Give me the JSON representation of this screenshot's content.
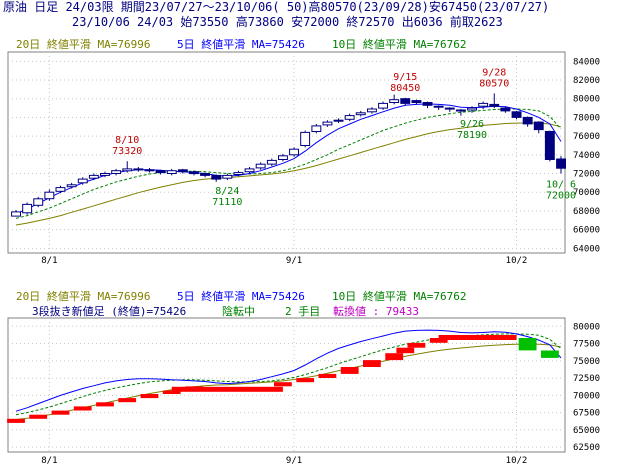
{
  "header": {
    "line1": "原油 日足 24/03限 期間23/07/27～23/10/06( 50)高80570(23/09/28)安67450(23/07/27)",
    "line2": "23/10/06 24/03 始73550 高73860 安72000 終72570 出6036 前取2623"
  },
  "upper_legend": {
    "ma20": "20日 終値平滑 MA=76996",
    "ma5": "5日 終値平滑 MA=75426",
    "ma10": "10日 終値平滑 MA=76762"
  },
  "lower_legend": {
    "ma20": "20日 終値平滑 MA=76996",
    "ma5": "5日 終値平滑 MA=75426",
    "ma10": "10日 終値平滑 MA=76762",
    "kagi_label": "3段抜き新値足 (終値)=75426",
    "state": "陰転中",
    "step": "2 手目",
    "reversal": "転換値 : 79433"
  },
  "colors": {
    "ma5": "#0000ff",
    "ma10": "#008000",
    "ma20": "#808000",
    "yang": "#ff0000",
    "yin": "#00c000",
    "bear_candle": "#000080",
    "header_text": "#000080",
    "annotation_high": "#c00000",
    "annotation_low": "#008000",
    "reversal": "#c000c0"
  },
  "chart_data": [
    {
      "type": "candlestick",
      "title": "",
      "x_ticks": [
        "8/1",
        "9/1",
        "10/2"
      ],
      "y_ticks": [
        64000,
        66000,
        68000,
        70000,
        72000,
        74000,
        76000,
        78000,
        80000,
        82000,
        84000
      ],
      "ylim": [
        63500,
        85000
      ],
      "grid": true,
      "dates": [
        "7/27",
        "7/28",
        "7/31",
        "8/1",
        "8/2",
        "8/3",
        "8/4",
        "8/7",
        "8/8",
        "8/9",
        "8/10",
        "8/14",
        "8/15",
        "8/16",
        "8/17",
        "8/18",
        "8/21",
        "8/22",
        "8/23",
        "8/24",
        "8/25",
        "8/28",
        "8/29",
        "8/30",
        "8/31",
        "9/1",
        "9/4",
        "9/5",
        "9/6",
        "9/7",
        "9/8",
        "9/11",
        "9/12",
        "9/13",
        "9/14",
        "9/15",
        "9/19",
        "9/20",
        "9/21",
        "9/22",
        "9/25",
        "9/26",
        "9/27",
        "9/28",
        "9/29",
        "10/2",
        "10/3",
        "10/4",
        "10/5",
        "10/6"
      ],
      "open": [
        67450,
        67800,
        68600,
        69300,
        70100,
        70600,
        71000,
        71500,
        71800,
        72000,
        72300,
        72500,
        72400,
        72300,
        72000,
        72400,
        72200,
        72000,
        71800,
        71500,
        71900,
        72200,
        72600,
        73000,
        73500,
        74000,
        75000,
        76500,
        77200,
        77600,
        77800,
        78300,
        78600,
        79000,
        79600,
        80000,
        79800,
        79600,
        79200,
        79000,
        78800,
        78800,
        79200,
        79400,
        79000,
        78600,
        78000,
        77500,
        76500,
        73550
      ],
      "close": [
        67900,
        68700,
        69300,
        70000,
        70500,
        70800,
        71400,
        71800,
        72000,
        72300,
        72500,
        72400,
        72300,
        72100,
        72300,
        72200,
        72000,
        71800,
        71400,
        71800,
        72100,
        72500,
        73000,
        73400,
        73900,
        74600,
        76400,
        77100,
        77500,
        77700,
        78200,
        78500,
        78900,
        79500,
        79900,
        79500,
        79600,
        79300,
        79100,
        78900,
        78700,
        79000,
        79500,
        79200,
        78700,
        78000,
        77300,
        76700,
        73500,
        72570
      ],
      "high": [
        68100,
        68900,
        69500,
        70300,
        70700,
        71000,
        71600,
        72000,
        72200,
        72500,
        73320,
        72700,
        72600,
        72400,
        72500,
        72500,
        72300,
        72100,
        71900,
        72000,
        72300,
        72700,
        73200,
        73600,
        74100,
        74800,
        76600,
        77300,
        77700,
        77900,
        78400,
        78700,
        79100,
        79700,
        80450,
        80100,
        79900,
        79700,
        79300,
        79100,
        78900,
        79200,
        79700,
        80570,
        79200,
        78700,
        78100,
        77600,
        76600,
        73860
      ],
      "low": [
        67450,
        67600,
        68400,
        69100,
        69900,
        70400,
        70800,
        71300,
        71600,
        71800,
        72100,
        72200,
        72100,
        71900,
        71800,
        72000,
        71800,
        71600,
        71110,
        71300,
        71700,
        72000,
        72400,
        72800,
        73300,
        73800,
        74800,
        76300,
        77000,
        77400,
        77600,
        78100,
        78400,
        78800,
        79400,
        79300,
        79400,
        79000,
        78800,
        78600,
        78190,
        78500,
        78900,
        79000,
        78500,
        77800,
        77000,
        76300,
        73300,
        72000
      ],
      "ma5": [
        67700,
        68200,
        68800,
        69400,
        70000,
        70500,
        71000,
        71400,
        71800,
        72100,
        72300,
        72400,
        72400,
        72350,
        72250,
        72200,
        72100,
        72000,
        71800,
        71700,
        71800,
        72000,
        72300,
        72700,
        73100,
        73600,
        74400,
        75300,
        76100,
        76800,
        77300,
        77800,
        78200,
        78600,
        79000,
        79300,
        79400,
        79450,
        79400,
        79300,
        79100,
        79050,
        79100,
        79200,
        79150,
        78900,
        78500,
        78000,
        77300,
        75426
      ],
      "ma10": [
        67200,
        67500,
        67900,
        68300,
        68800,
        69300,
        69800,
        70300,
        70700,
        71100,
        71400,
        71700,
        71950,
        72100,
        72200,
        72250,
        72250,
        72200,
        72100,
        72000,
        71950,
        71950,
        72000,
        72100,
        72300,
        72600,
        73000,
        73500,
        74000,
        74600,
        75100,
        75600,
        76100,
        76600,
        77000,
        77400,
        77700,
        78000,
        78200,
        78400,
        78550,
        78650,
        78750,
        78850,
        78900,
        78900,
        78850,
        78700,
        78100,
        76762
      ],
      "ma20": [
        66500,
        66700,
        66950,
        67200,
        67500,
        67850,
        68200,
        68550,
        68900,
        69250,
        69600,
        69950,
        70250,
        70550,
        70800,
        71050,
        71250,
        71400,
        71500,
        71550,
        71650,
        71750,
        71850,
        71950,
        72100,
        72300,
        72550,
        72850,
        73200,
        73550,
        73900,
        74250,
        74600,
        74950,
        75300,
        75650,
        75950,
        76250,
        76500,
        76700,
        76850,
        77000,
        77150,
        77250,
        77350,
        77400,
        77420,
        77400,
        77300,
        76996
      ],
      "annotations": [
        {
          "date": "8/10",
          "label": "8/10",
          "value": "73320",
          "kind": "high"
        },
        {
          "date": "8/24",
          "label": "8/24",
          "value": "71110",
          "kind": "low"
        },
        {
          "date": "9/15",
          "label": "9/15",
          "value": "80450",
          "kind": "high"
        },
        {
          "date": "9/26",
          "label": "9/26",
          "value": "78190",
          "kind": "low"
        },
        {
          "date": "9/28",
          "label": "9/28",
          "value": "80570",
          "kind": "high"
        },
        {
          "date": "10/6",
          "label": "10/ 6",
          "value": "72000",
          "kind": "low"
        }
      ]
    },
    {
      "type": "new-price-bars",
      "title": "",
      "x_ticks": [
        "8/1",
        "9/1",
        "10/2"
      ],
      "y_ticks": [
        62500,
        65000,
        67500,
        70000,
        72500,
        75000,
        77500,
        80000
      ],
      "ylim": [
        61800,
        81200
      ],
      "grid": true,
      "blocks": [
        {
          "date": "7/27",
          "low": 66000,
          "high": 66600,
          "dir": "up"
        },
        {
          "date": "7/31",
          "low": 66600,
          "high": 67200,
          "dir": "up"
        },
        {
          "date": "8/2",
          "low": 67200,
          "high": 67800,
          "dir": "up"
        },
        {
          "date": "8/4",
          "low": 67800,
          "high": 68400,
          "dir": "up"
        },
        {
          "date": "8/8",
          "low": 68400,
          "high": 69000,
          "dir": "up"
        },
        {
          "date": "8/10",
          "low": 69000,
          "high": 69600,
          "dir": "up"
        },
        {
          "date": "8/15",
          "low": 69600,
          "high": 70200,
          "dir": "up"
        },
        {
          "date": "8/17",
          "low": 70200,
          "high": 70700,
          "dir": "up"
        },
        {
          "date": "8/21",
          "low": 70700,
          "high": 71300,
          "dir": "up"
        },
        {
          "date": "8/31",
          "low": 71300,
          "high": 71900,
          "dir": "up"
        },
        {
          "date": "9/4",
          "low": 71900,
          "high": 72500,
          "dir": "up"
        },
        {
          "date": "9/6",
          "low": 72500,
          "high": 73100,
          "dir": "up"
        },
        {
          "date": "9/8",
          "low": 73100,
          "high": 74100,
          "dir": "up"
        },
        {
          "date": "9/12",
          "low": 74100,
          "high": 75100,
          "dir": "up"
        },
        {
          "date": "9/14",
          "low": 75100,
          "high": 76100,
          "dir": "up"
        },
        {
          "date": "9/15",
          "low": 76100,
          "high": 76900,
          "dir": "up"
        },
        {
          "date": "9/19",
          "low": 76900,
          "high": 77600,
          "dir": "up"
        },
        {
          "date": "9/21",
          "low": 77600,
          "high": 78300,
          "dir": "up"
        },
        {
          "date": "10/3",
          "low": 76500,
          "high": 78300,
          "dir": "down"
        },
        {
          "date": "10/5",
          "low": 75426,
          "high": 76500,
          "dir": "down"
        }
      ],
      "tops": [
        {
          "from": "8/17",
          "to": "8/31",
          "value": 70800
        },
        {
          "from": "9/21",
          "to": "10/2",
          "value": 78300
        }
      ]
    }
  ]
}
